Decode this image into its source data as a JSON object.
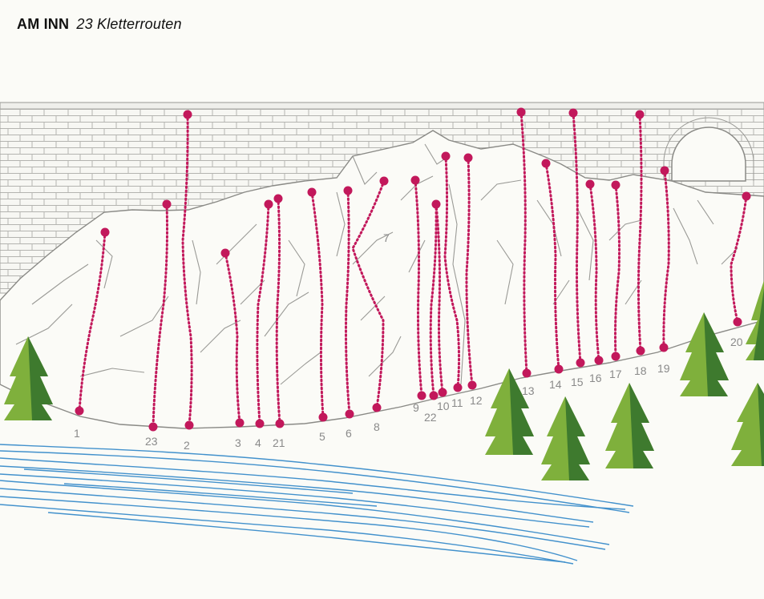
{
  "header": {
    "place": "AM INN",
    "subtitle": "23 Kletterrouten"
  },
  "colors": {
    "route": "#c2185b",
    "rock_line": "#8a8a8a",
    "water": "#2e86c8",
    "tree_light": "#7fb03c",
    "tree_dark": "#3e7a2e",
    "background": "#fbfbf7"
  },
  "routes": [
    {
      "label": "1"
    },
    {
      "label": "2"
    },
    {
      "label": "3"
    },
    {
      "label": "4"
    },
    {
      "label": "5"
    },
    {
      "label": "6"
    },
    {
      "label": "7"
    },
    {
      "label": "8"
    },
    {
      "label": "9"
    },
    {
      "label": "10"
    },
    {
      "label": "11"
    },
    {
      "label": "12"
    },
    {
      "label": "13"
    },
    {
      "label": "14"
    },
    {
      "label": "15"
    },
    {
      "label": "16"
    },
    {
      "label": "17"
    },
    {
      "label": "18"
    },
    {
      "label": "19"
    },
    {
      "label": "20"
    },
    {
      "label": "21"
    },
    {
      "label": "22"
    },
    {
      "label": "23"
    }
  ]
}
